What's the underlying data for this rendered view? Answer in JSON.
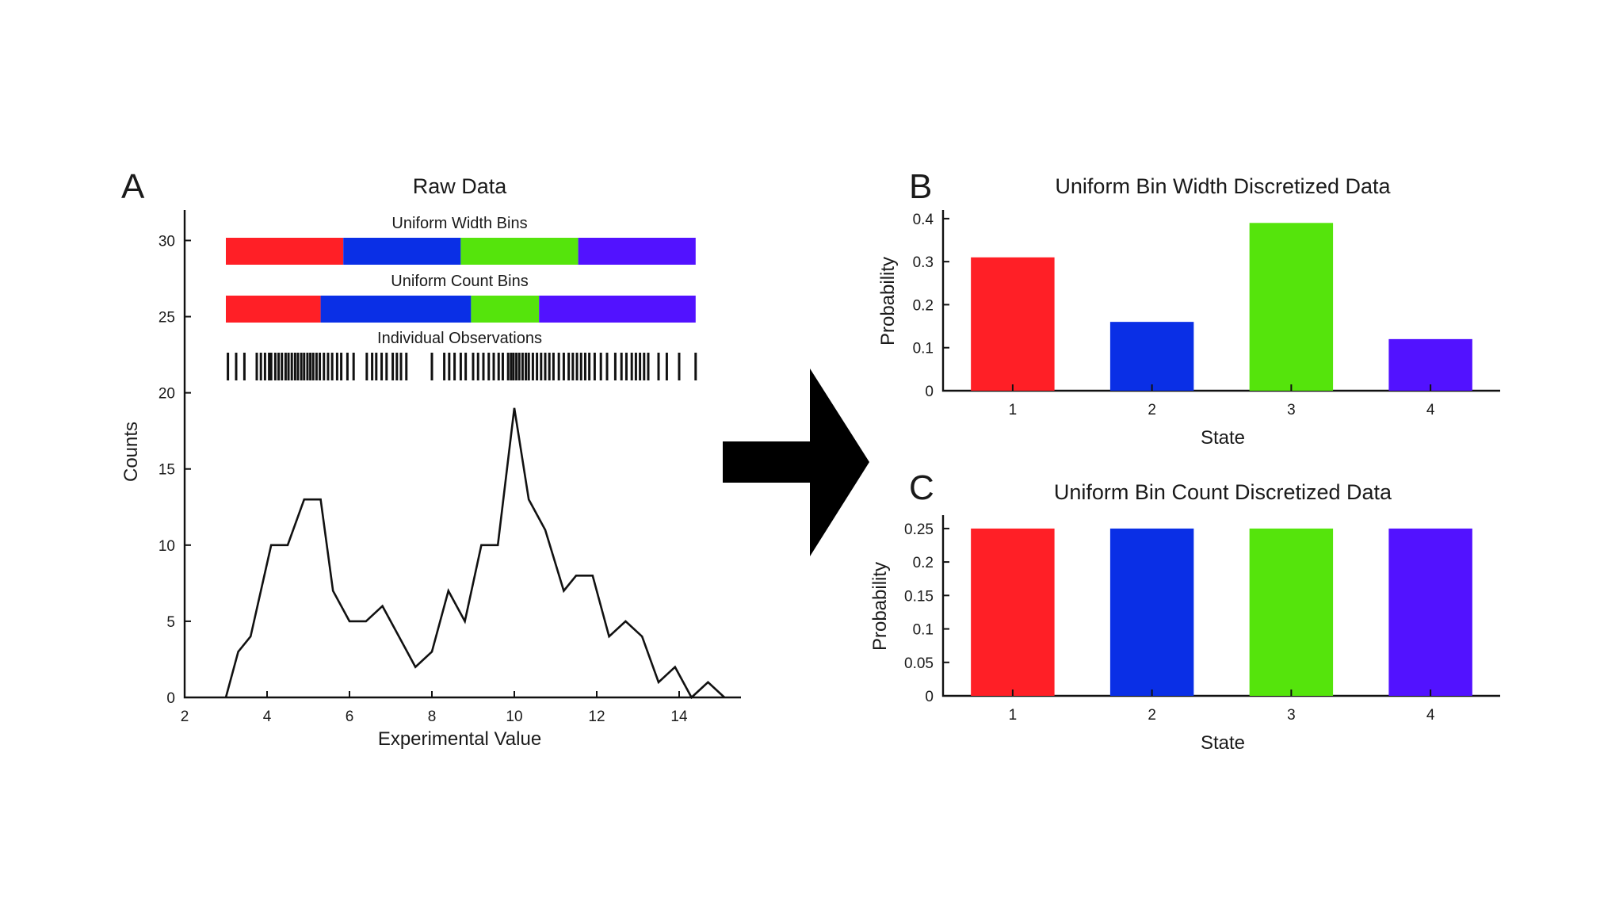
{
  "panels": {
    "a": "A",
    "b": "B",
    "c": "C"
  },
  "arrow": {
    "icon": "right-arrow-icon",
    "color": "#000000"
  },
  "chart_data": [
    {
      "id": "A",
      "type": "line",
      "title": "Raw Data",
      "xlabel": "Experimental Value",
      "ylabel": "Counts",
      "xlim": [
        2,
        15.5
      ],
      "ylim": [
        0,
        32
      ],
      "xticks": [
        2,
        4,
        6,
        8,
        10,
        12,
        14
      ],
      "yticks": [
        0,
        5,
        10,
        15,
        20,
        25,
        30
      ],
      "x": [
        3.0,
        3.3,
        3.6,
        4.1,
        4.5,
        4.9,
        5.3,
        5.6,
        6.0,
        6.4,
        6.8,
        7.2,
        7.6,
        8.0,
        8.4,
        8.8,
        9.2,
        9.6,
        10.0,
        10.35,
        10.75,
        11.2,
        11.5,
        11.9,
        12.3,
        12.7,
        13.1,
        13.5,
        13.9,
        14.3,
        14.7,
        15.1
      ],
      "y": [
        0,
        3,
        4,
        10,
        10,
        13,
        13,
        7,
        5,
        5,
        6,
        4,
        2,
        3,
        7,
        5,
        10,
        10,
        19,
        13,
        11,
        7,
        8,
        8,
        4,
        5,
        4,
        1,
        2,
        0,
        1,
        0
      ],
      "line_color": "#111111",
      "strips": [
        {
          "label": "Uniform Width Bins",
          "segments": [
            {
              "from": 3.0,
              "to": 5.85,
              "color": "#ff1f26"
            },
            {
              "from": 5.85,
              "to": 8.7,
              "color": "#0a2fe6"
            },
            {
              "from": 8.7,
              "to": 11.55,
              "color": "#55e40c"
            },
            {
              "from": 11.55,
              "to": 14.4,
              "color": "#5212ff"
            }
          ]
        },
        {
          "label": "Uniform Count Bins",
          "segments": [
            {
              "from": 3.0,
              "to": 5.3,
              "color": "#ff1f26"
            },
            {
              "from": 5.3,
              "to": 8.95,
              "color": "#0a2fe6"
            },
            {
              "from": 8.95,
              "to": 10.6,
              "color": "#55e40c"
            },
            {
              "from": 10.6,
              "to": 14.4,
              "color": "#5212ff"
            }
          ]
        }
      ],
      "observations_label": "Individual Observations",
      "observations": [
        3.05,
        3.25,
        3.45,
        3.75,
        3.85,
        3.95,
        4.05,
        4.1,
        4.2,
        4.28,
        4.36,
        4.45,
        4.52,
        4.6,
        4.68,
        4.75,
        4.83,
        4.9,
        4.98,
        5.05,
        5.12,
        5.2,
        5.28,
        5.38,
        5.48,
        5.58,
        5.7,
        5.8,
        5.95,
        6.1,
        6.42,
        6.55,
        6.65,
        6.78,
        6.9,
        7.05,
        7.15,
        7.25,
        7.38,
        8.0,
        8.3,
        8.42,
        8.55,
        8.7,
        8.82,
        9.0,
        9.12,
        9.25,
        9.38,
        9.5,
        9.62,
        9.72,
        9.85,
        9.92,
        9.98,
        10.05,
        10.12,
        10.2,
        10.28,
        10.35,
        10.45,
        10.55,
        10.65,
        10.75,
        10.85,
        10.95,
        11.08,
        11.2,
        11.32,
        11.42,
        11.52,
        11.62,
        11.72,
        11.82,
        11.95,
        12.1,
        12.25,
        12.45,
        12.6,
        12.72,
        12.85,
        12.95,
        13.05,
        13.15,
        13.25,
        13.5,
        13.7,
        14.0,
        14.4
      ]
    },
    {
      "id": "B",
      "type": "bar",
      "title": "Uniform Bin Width Discretized Data",
      "xlabel": "State",
      "ylabel": "Probability",
      "categories": [
        "1",
        "2",
        "3",
        "4"
      ],
      "values": [
        0.31,
        0.16,
        0.39,
        0.12
      ],
      "colors": [
        "#ff1f26",
        "#0a2fe6",
        "#55e40c",
        "#5212ff"
      ],
      "ylim": [
        0,
        0.42
      ],
      "yticks": [
        0,
        0.1,
        0.2,
        0.3,
        0.4
      ]
    },
    {
      "id": "C",
      "type": "bar",
      "title": "Uniform Bin Count Discretized Data",
      "xlabel": "State",
      "ylabel": "Probability",
      "categories": [
        "1",
        "2",
        "3",
        "4"
      ],
      "values": [
        0.25,
        0.25,
        0.25,
        0.25
      ],
      "colors": [
        "#ff1f26",
        "#0a2fe6",
        "#55e40c",
        "#5212ff"
      ],
      "ylim": [
        0,
        0.27
      ],
      "yticks": [
        0,
        0.05,
        0.1,
        0.15,
        0.2,
        0.25
      ]
    }
  ]
}
